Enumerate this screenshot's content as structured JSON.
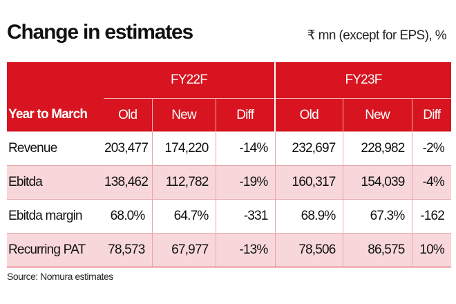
{
  "title": "Change in estimates",
  "unit_note": "₹ mn (except for EPS), %",
  "table": {
    "row_header": "Year to March",
    "groups": [
      "FY22F",
      "FY23F"
    ],
    "subheaders": [
      "Old",
      "New",
      "Diff",
      "Old",
      "New",
      "Diff"
    ],
    "rows": [
      {
        "label": "Revenue",
        "values": [
          "203,477",
          "174,220",
          "-14%",
          "232,697",
          "228,982",
          "-2%"
        ]
      },
      {
        "label": "Ebitda",
        "values": [
          "138,462",
          "112,782",
          "-19%",
          "160,317",
          "154,039",
          "-4%"
        ]
      },
      {
        "label": "Ebitda margin",
        "values": [
          "68.0%",
          "64.7%",
          "-331",
          "68.9%",
          "67.3%",
          "-162"
        ]
      },
      {
        "label": "Recurring PAT",
        "values": [
          "78,573",
          "67,977",
          "-13%",
          "78,506",
          "86,575",
          "10%"
        ]
      }
    ]
  },
  "source": "Source: Nomura estimates",
  "colors": {
    "header_red": "#d7141f",
    "row_pink": "#f8d7da"
  }
}
